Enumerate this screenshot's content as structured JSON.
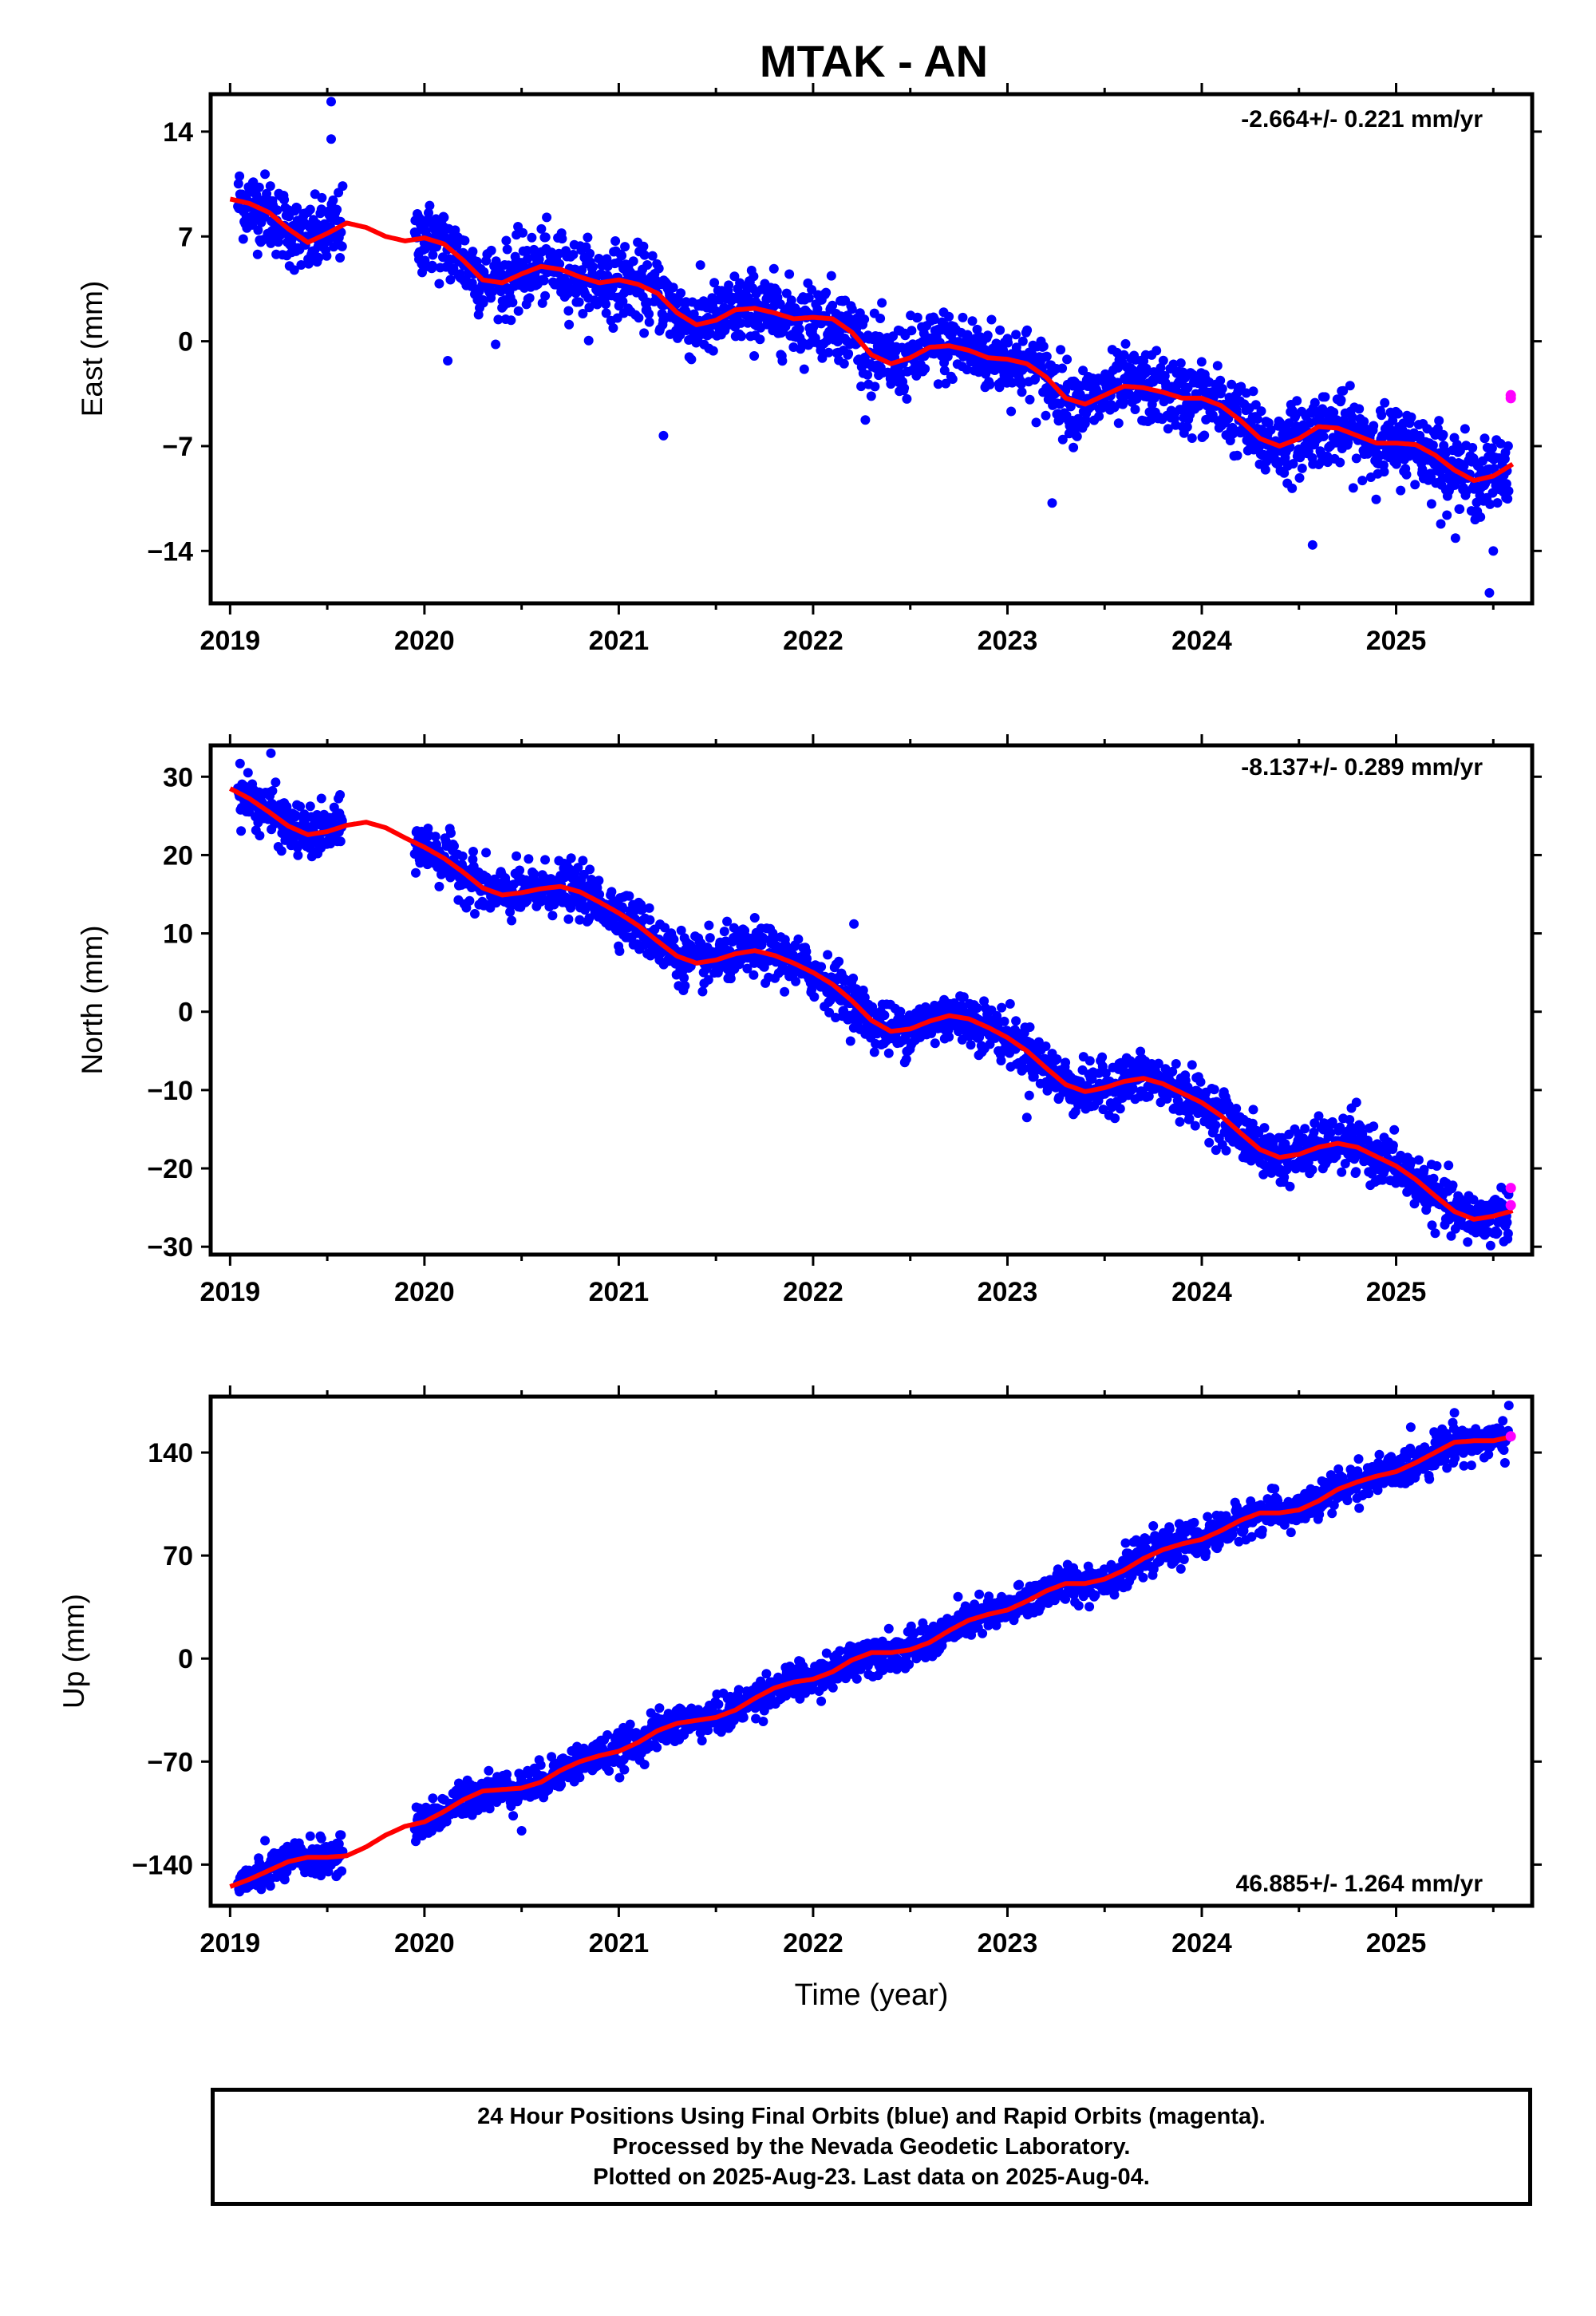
{
  "title": "MTAK - AN",
  "colors": {
    "final": "#0000ff",
    "rapid": "#ff00ff",
    "model": "#ff0000",
    "axis": "#000000"
  },
  "x_label": "Time (year)",
  "x_ticks": [
    "2019",
    "2020",
    "2021",
    "2022",
    "2023",
    "2024",
    "2025"
  ],
  "chart_data": [
    {
      "type": "scatter",
      "panel": "east",
      "ylabel": "East (mm)",
      "rate_label": "-2.664+/- 0.221 mm/yr",
      "rate_position": "top-right",
      "xlim": [
        2018.9,
        2025.7
      ],
      "ylim": [
        -17.5,
        16.5
      ],
      "yticks": [
        14,
        7,
        0,
        -7,
        -14
      ],
      "ytick_labels": [
        "14",
        "7",
        "0",
        "−7",
        "−14"
      ],
      "rate": -2.664,
      "model": {
        "x": [
          2019.0,
          2019.1,
          2019.2,
          2019.3,
          2019.4,
          2019.5,
          2019.6,
          2019.7,
          2019.8,
          2019.9,
          2020.0,
          2020.1,
          2020.2,
          2020.3,
          2020.4,
          2020.5,
          2020.6,
          2020.7,
          2020.8,
          2020.9,
          2021.0,
          2021.1,
          2021.2,
          2021.3,
          2021.4,
          2021.5,
          2021.6,
          2021.7,
          2021.8,
          2021.9,
          2022.0,
          2022.1,
          2022.2,
          2022.3,
          2022.4,
          2022.5,
          2022.6,
          2022.7,
          2022.8,
          2022.9,
          2023.0,
          2023.1,
          2023.2,
          2023.3,
          2023.4,
          2023.5,
          2023.6,
          2023.7,
          2023.8,
          2023.9,
          2024.0,
          2024.1,
          2024.2,
          2024.3,
          2024.4,
          2024.5,
          2024.6,
          2024.7,
          2024.8,
          2024.9,
          2025.0,
          2025.1,
          2025.2,
          2025.3,
          2025.4,
          2025.5,
          2025.6
        ],
        "y": [
          9.5,
          9.2,
          8.6,
          7.5,
          6.6,
          7.2,
          7.9,
          7.6,
          7.0,
          6.7,
          6.9,
          6.5,
          5.4,
          4.1,
          3.9,
          4.5,
          5.0,
          4.8,
          4.3,
          3.9,
          4.1,
          3.8,
          3.2,
          1.9,
          1.1,
          1.4,
          2.1,
          2.2,
          1.9,
          1.5,
          1.6,
          1.5,
          0.6,
          -0.9,
          -1.5,
          -1.1,
          -0.4,
          -0.3,
          -0.6,
          -1.1,
          -1.2,
          -1.5,
          -2.4,
          -3.8,
          -4.2,
          -3.6,
          -3.0,
          -3.1,
          -3.4,
          -3.8,
          -3.8,
          -4.3,
          -5.3,
          -6.5,
          -7.0,
          -6.5,
          -5.7,
          -5.8,
          -6.3,
          -6.8,
          -6.8,
          -6.9,
          -7.6,
          -8.6,
          -9.3,
          -9.0,
          -8.2
        ]
      },
      "noise": 1.2,
      "outliers": [
        [
          2019.52,
          16.0
        ],
        [
          2019.52,
          13.5
        ],
        [
          2020.12,
          -1.3
        ],
        [
          2021.23,
          -6.3
        ],
        [
          2023.23,
          -10.8
        ],
        [
          2024.57,
          -13.6
        ],
        [
          2025.5,
          -14.0
        ],
        [
          2025.48,
          -16.8
        ],
        [
          2025.23,
          -12.2
        ]
      ],
      "rapid": [
        [
          2025.59,
          -3.8
        ],
        [
          2025.59,
          -3.6
        ]
      ]
    },
    {
      "type": "scatter",
      "panel": "north",
      "ylabel": "North (mm)",
      "rate_label": "-8.137+/- 0.289 mm/yr",
      "rate_position": "top-right",
      "xlim": [
        2018.9,
        2025.7
      ],
      "ylim": [
        -31,
        34
      ],
      "yticks": [
        30,
        20,
        10,
        0,
        -10,
        -20,
        -30
      ],
      "ytick_labels": [
        "30",
        "20",
        "10",
        "0",
        "−10",
        "−20",
        "−30"
      ],
      "rate": -8.137,
      "model": {
        "x": [
          2019.0,
          2019.1,
          2019.2,
          2019.3,
          2019.4,
          2019.5,
          2019.6,
          2019.7,
          2019.8,
          2019.9,
          2020.0,
          2020.1,
          2020.2,
          2020.3,
          2020.4,
          2020.5,
          2020.6,
          2020.7,
          2020.8,
          2020.9,
          2021.0,
          2021.1,
          2021.2,
          2021.3,
          2021.4,
          2021.5,
          2021.6,
          2021.7,
          2021.8,
          2021.9,
          2022.0,
          2022.1,
          2022.2,
          2022.3,
          2022.4,
          2022.5,
          2022.6,
          2022.7,
          2022.8,
          2022.9,
          2023.0,
          2023.1,
          2023.2,
          2023.3,
          2023.4,
          2023.5,
          2023.6,
          2023.7,
          2023.8,
          2023.9,
          2024.0,
          2024.1,
          2024.2,
          2024.3,
          2024.4,
          2024.5,
          2024.6,
          2024.7,
          2024.8,
          2024.9,
          2025.0,
          2025.1,
          2025.2,
          2025.3,
          2025.4,
          2025.5,
          2025.6
        ],
        "y": [
          28.5,
          27.2,
          25.5,
          23.7,
          22.6,
          23.0,
          23.8,
          24.2,
          23.5,
          22.2,
          21.0,
          19.6,
          17.8,
          15.8,
          14.9,
          15.2,
          15.7,
          16.0,
          15.3,
          14.0,
          12.6,
          11.0,
          9.0,
          7.1,
          6.2,
          6.6,
          7.4,
          7.8,
          7.2,
          6.2,
          5.0,
          3.5,
          1.4,
          -1.1,
          -2.5,
          -2.2,
          -1.2,
          -0.5,
          -0.9,
          -2.0,
          -3.3,
          -5.0,
          -7.2,
          -9.3,
          -10.2,
          -9.7,
          -8.9,
          -8.5,
          -9.2,
          -10.4,
          -11.6,
          -13.3,
          -15.5,
          -17.6,
          -18.6,
          -18.2,
          -17.3,
          -16.8,
          -17.3,
          -18.5,
          -19.7,
          -21.4,
          -23.5,
          -25.5,
          -26.5,
          -26.1,
          -25.4
        ]
      },
      "noise": 1.6,
      "outliers": [
        [
          2019.21,
          33.0
        ],
        [
          2021.55,
          9.0
        ],
        [
          2022.21,
          11.2
        ],
        [
          2023.1,
          -13.5
        ],
        [
          2024.77,
          -12.3
        ],
        [
          2025.41,
          -28.2
        ]
      ],
      "rapid": [
        [
          2025.59,
          -22.5
        ],
        [
          2025.59,
          -24.7
        ]
      ]
    },
    {
      "type": "scatter",
      "panel": "up",
      "ylabel": "Up (mm)",
      "rate_label": "46.885+/- 1.264 mm/yr",
      "rate_position": "bottom-right",
      "xlim": [
        2018.9,
        2025.7
      ],
      "ylim": [
        -168,
        178
      ],
      "yticks": [
        140,
        70,
        0,
        -70,
        -140
      ],
      "ytick_labels": [
        "140",
        "70",
        "0",
        "−70",
        "−140"
      ],
      "rate": 46.885,
      "model": {
        "x": [
          2019.0,
          2019.1,
          2019.2,
          2019.3,
          2019.4,
          2019.5,
          2019.6,
          2019.7,
          2019.8,
          2019.9,
          2020.0,
          2020.1,
          2020.2,
          2020.3,
          2020.4,
          2020.5,
          2020.6,
          2020.7,
          2020.8,
          2020.9,
          2021.0,
          2021.1,
          2021.2,
          2021.3,
          2021.4,
          2021.5,
          2021.6,
          2021.7,
          2021.8,
          2021.9,
          2022.0,
          2022.1,
          2022.2,
          2022.3,
          2022.4,
          2022.5,
          2022.6,
          2022.7,
          2022.8,
          2022.9,
          2023.0,
          2023.1,
          2023.2,
          2023.3,
          2023.4,
          2023.5,
          2023.6,
          2023.7,
          2023.8,
          2023.9,
          2024.0,
          2024.1,
          2024.2,
          2024.3,
          2024.4,
          2024.5,
          2024.6,
          2024.7,
          2024.8,
          2024.9,
          2025.0,
          2025.1,
          2025.2,
          2025.3,
          2025.4,
          2025.5,
          2025.6
        ],
        "y": [
          -155,
          -150,
          -144,
          -138,
          -135,
          -135,
          -134,
          -128,
          -120,
          -114,
          -111,
          -104,
          -96,
          -90,
          -89,
          -88,
          -84,
          -76,
          -70,
          -66,
          -63,
          -57,
          -49,
          -44,
          -42,
          -40,
          -35,
          -27,
          -20,
          -16,
          -14,
          -9,
          -1,
          4,
          4,
          6,
          11,
          19,
          26,
          30,
          33,
          39,
          46,
          51,
          51,
          54,
          60,
          68,
          74,
          78,
          81,
          87,
          94,
          99,
          99,
          101,
          107,
          115,
          120,
          124,
          127,
          133,
          140,
          147,
          148,
          148,
          151
        ]
      },
      "noise": 6.0,
      "outliers": [
        [
          2020.5,
          -117
        ],
        [
          2025.58,
          172
        ],
        [
          2025.3,
          167
        ]
      ],
      "rapid": [
        [
          2025.59,
          151
        ]
      ]
    }
  ],
  "footer": {
    "line1": "24 Hour Positions Using Final Orbits (blue) and Rapid Orbits (magenta).",
    "line2": "Processed by the Nevada Geodetic Laboratory.",
    "line3": "Plotted on 2025-Aug-23. Last data on 2025-Aug-04."
  }
}
